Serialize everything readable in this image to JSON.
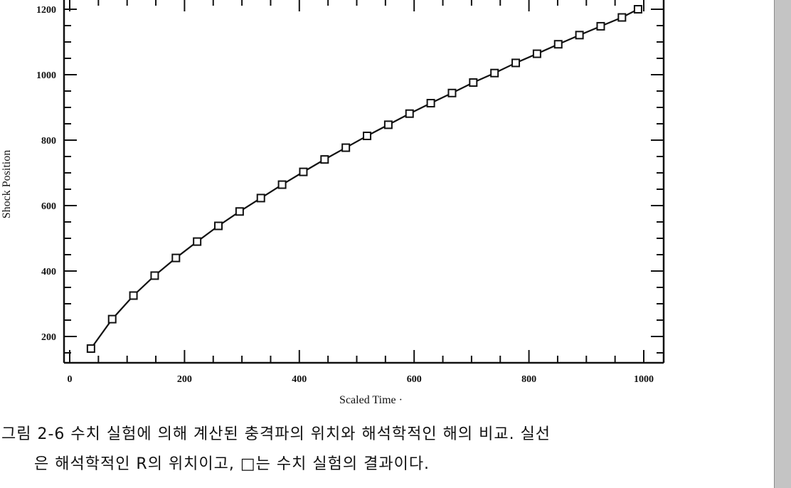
{
  "chart_data": {
    "type": "line",
    "xlabel": "Scaled Time  ·",
    "ylabel": "Shock Position",
    "xlim": [
      0,
      1000
    ],
    "ylim": [
      140,
      1200
    ],
    "x_ticks": [
      0,
      200,
      400,
      600,
      800,
      1000
    ],
    "y_ticks": [
      200,
      400,
      600,
      800,
      1000,
      1200
    ],
    "grid": false,
    "series": [
      {
        "marker": "square",
        "line": "solid",
        "color": "#111111",
        "x": [
          37,
          74,
          111,
          148,
          185,
          222,
          259,
          296,
          333,
          370,
          407,
          444,
          481,
          518,
          555,
          592,
          629,
          666,
          703,
          740,
          777,
          814,
          851,
          888,
          925,
          962,
          990
        ],
        "y": [
          163,
          253,
          325,
          386,
          440,
          490,
          538,
          582,
          623,
          664,
          703,
          741,
          777,
          813,
          847,
          881,
          913,
          944,
          976,
          1005,
          1036,
          1064,
          1093,
          1121,
          1148,
          1175,
          1200
        ]
      }
    ]
  },
  "caption": {
    "line1": "그림 2-6  수치 실험에 의해 계산된 충격파의 위치와 해석학적인 해의 비교. 실선",
    "line2": "은 해석학적인 R의 위치이고, □는 수치 실험의 결과이다."
  }
}
